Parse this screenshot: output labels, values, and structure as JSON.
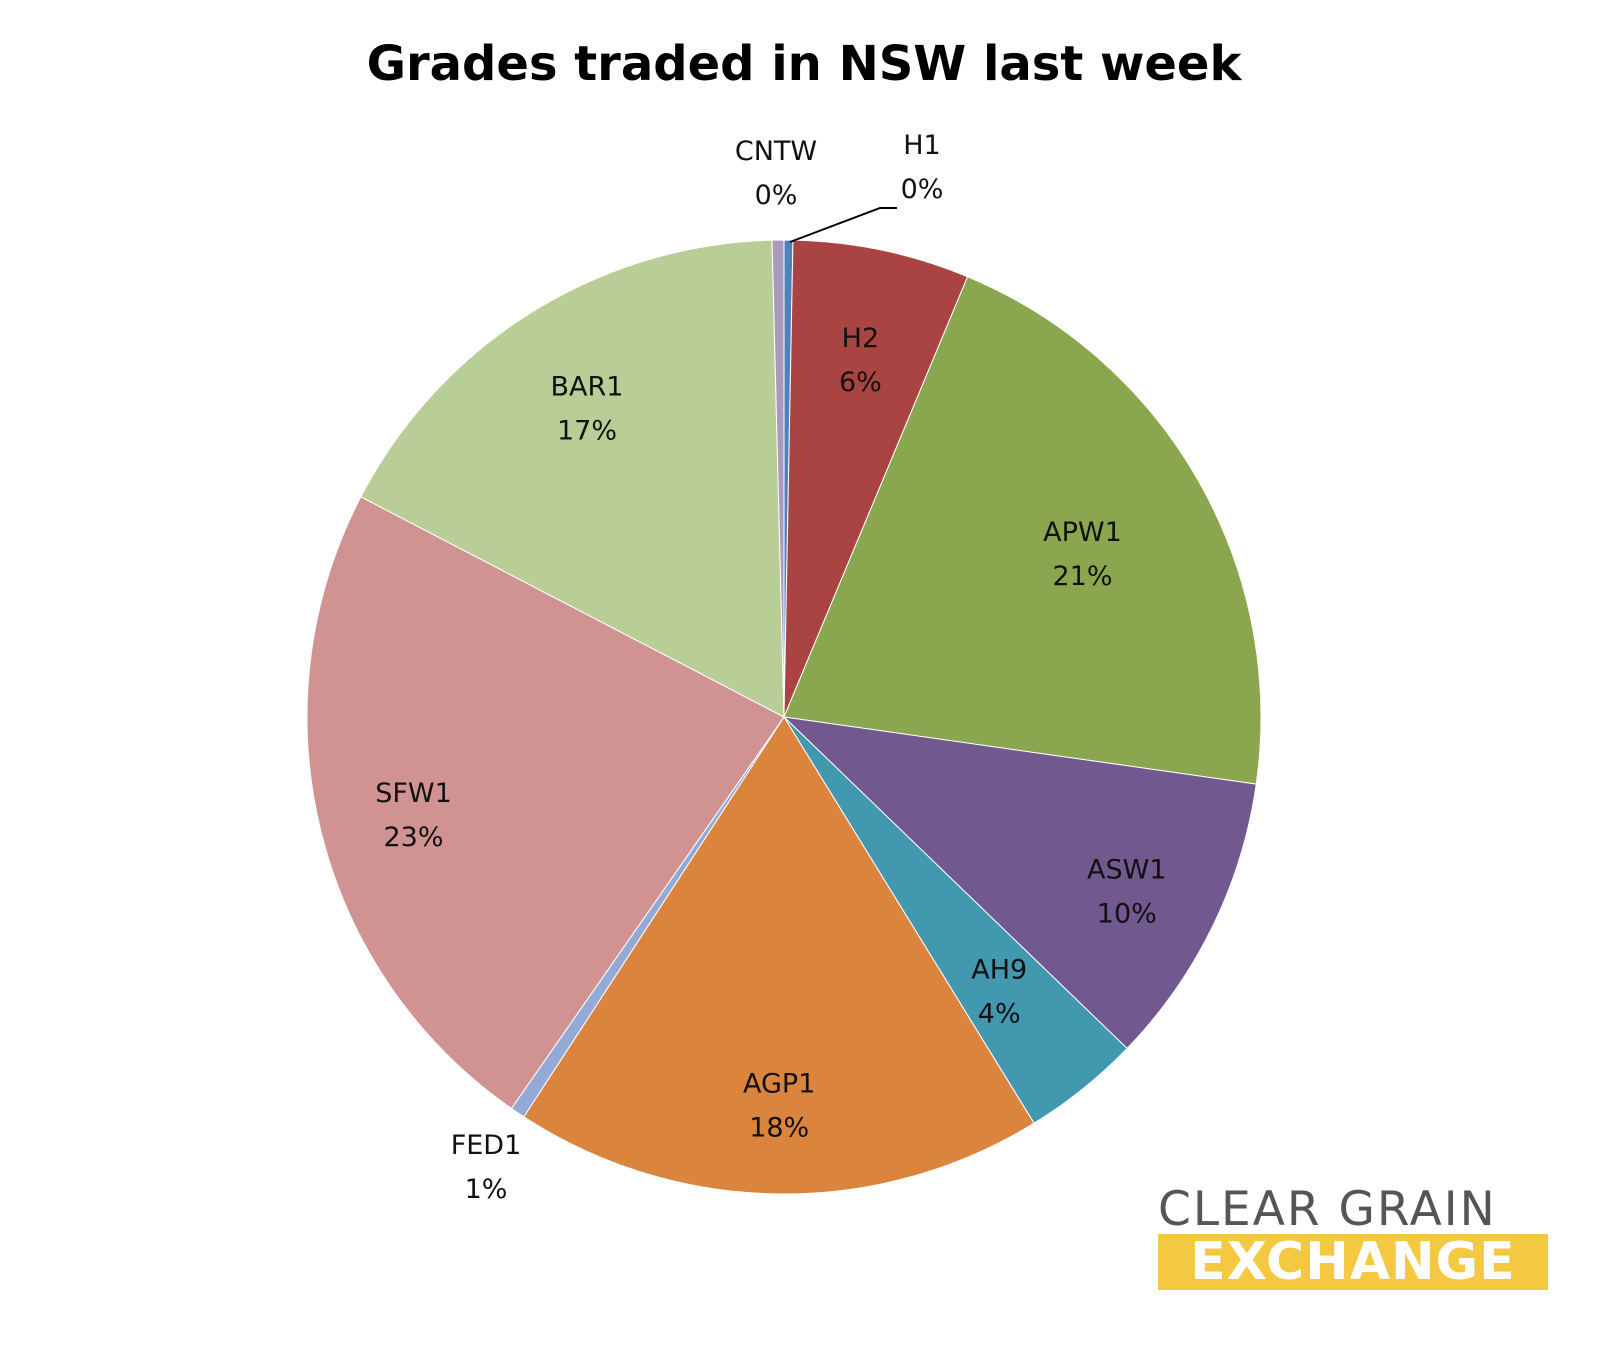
{
  "chart_data": {
    "type": "pie",
    "title": "Grades traded in NSW last week",
    "slices": [
      {
        "label": "H1",
        "pct_label": "0%",
        "value": 0.3,
        "color": "#4f81bd"
      },
      {
        "label": "H2",
        "pct_label": "6%",
        "value": 6,
        "color": "#a94442"
      },
      {
        "label": "APW1",
        "pct_label": "21%",
        "value": 21,
        "color": "#8aa64e"
      },
      {
        "label": "ASW1",
        "pct_label": "10%",
        "value": 10,
        "color": "#71588f"
      },
      {
        "label": "AH9",
        "pct_label": "4%",
        "value": 4,
        "color": "#4298ae"
      },
      {
        "label": "AGP1",
        "pct_label": "18%",
        "value": 18,
        "color": "#db843d"
      },
      {
        "label": "FED1",
        "pct_label": "1%",
        "value": 0.5,
        "color": "#93a9d6"
      },
      {
        "label": "SFW1",
        "pct_label": "23%",
        "value": 23,
        "color": "#d19392"
      },
      {
        "label": "BAR1",
        "pct_label": "17%",
        "value": 17,
        "color": "#b9cd96"
      },
      {
        "label": "CNTW",
        "pct_label": "0%",
        "value": 0.4,
        "color": "#a99bbd"
      }
    ],
    "start": "top",
    "direction": "clockwise",
    "legend": "none"
  },
  "logo": {
    "line1": "CLEAR GRAIN",
    "line2": "EXCHANGE",
    "text_color": "#555555",
    "band_color": "#f5c842"
  }
}
